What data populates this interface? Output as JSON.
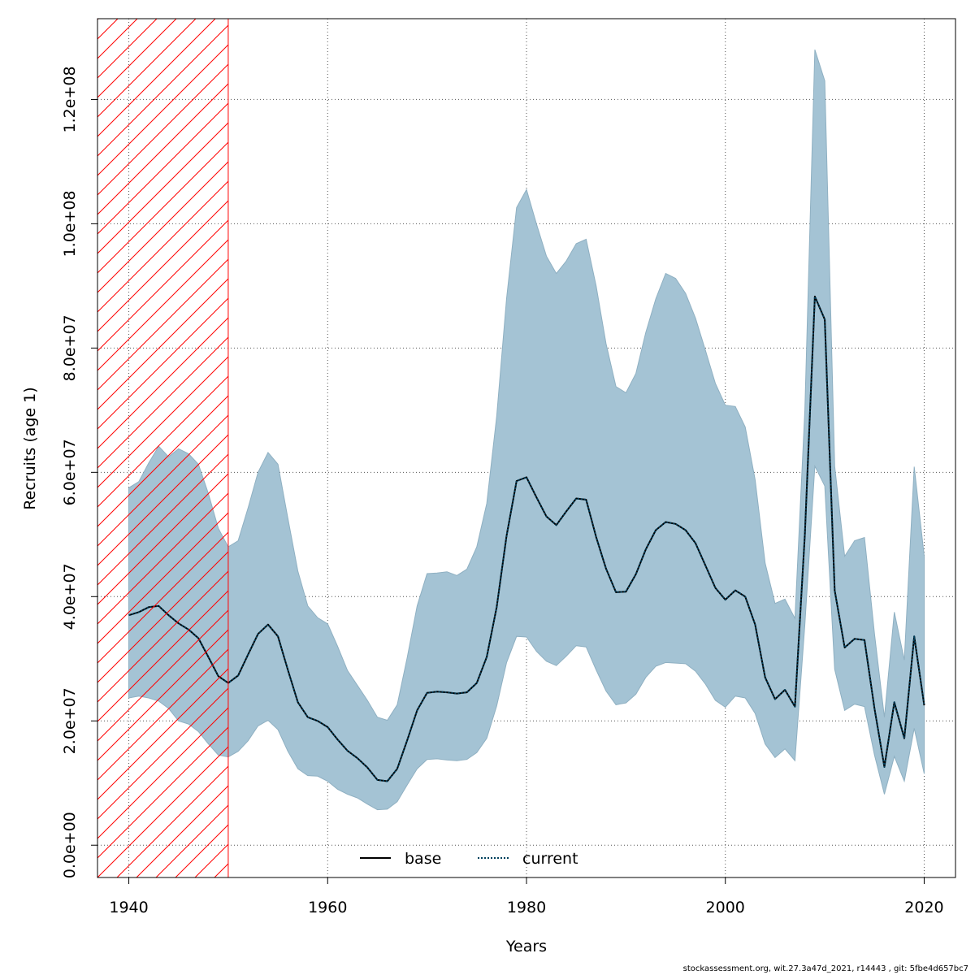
{
  "chart_data": {
    "type": "line",
    "title": "",
    "xlabel": "Years",
    "ylabel": "Recruits (age 1)",
    "xlim": [
      1936.85,
      2023.15
    ],
    "ylim": [
      -5200000,
      133000000
    ],
    "x_ticks": [
      1940,
      1960,
      1980,
      2000,
      2020
    ],
    "x_tick_labels": [
      "1940",
      "1960",
      "1980",
      "2000",
      "2020"
    ],
    "y_ticks": [
      0,
      20000000,
      40000000,
      60000000,
      80000000,
      100000000,
      120000000
    ],
    "y_tick_labels": [
      "0.0e+00",
      "2.0e+07",
      "4.0e+07",
      "6.0e+07",
      "8.0e+07",
      "1.0e+08",
      "1.2e+08"
    ],
    "grid": true,
    "legend_position": "bottom",
    "colors": {
      "band": "#a4c3d4",
      "band_edge": "#8fb0c2",
      "current": "#003f5c",
      "base": "#000000",
      "hatch": "#ff0000",
      "grid": "#555555"
    },
    "hatched_region": {
      "x_start": 1936.85,
      "x_end": 1950
    },
    "x": [
      1940,
      1941,
      1942,
      1943,
      1944,
      1945,
      1946,
      1947,
      1948,
      1949,
      1950,
      1951,
      1952,
      1953,
      1954,
      1955,
      1956,
      1957,
      1958,
      1959,
      1960,
      1961,
      1962,
      1963,
      1964,
      1965,
      1966,
      1967,
      1968,
      1969,
      1970,
      1971,
      1972,
      1973,
      1974,
      1975,
      1976,
      1977,
      1978,
      1979,
      1980,
      1981,
      1982,
      1983,
      1984,
      1985,
      1986,
      1987,
      1988,
      1989,
      1990,
      1991,
      1992,
      1993,
      1994,
      1995,
      1996,
      1997,
      1998,
      1999,
      2000,
      2001,
      2002,
      2003,
      2004,
      2005,
      2006,
      2007,
      2008,
      2009,
      2010,
      2011,
      2012,
      2013,
      2014,
      2015,
      2016,
      2017,
      2018,
      2019,
      2020
    ],
    "series": [
      {
        "name": "base",
        "style": "solid",
        "values": [
          37000000,
          37500000,
          38300000,
          38500000,
          37000000,
          35700000,
          34700000,
          33300000,
          30300000,
          27200000,
          26100000,
          27300000,
          30700000,
          34000000,
          35500000,
          33600000,
          28200000,
          23000000,
          20600000,
          20000000,
          19000000,
          17000000,
          15200000,
          14000000,
          12500000,
          10500000,
          10300000,
          12300000,
          16900000,
          21700000,
          24500000,
          24700000,
          24600000,
          24400000,
          24600000,
          26100000,
          30300000,
          38300000,
          49800000,
          58600000,
          59200000,
          56000000,
          52900000,
          51500000,
          53700000,
          55800000,
          55600000,
          49600000,
          44500000,
          40700000,
          40800000,
          43600000,
          47600000,
          50700000,
          52000000,
          51700000,
          50700000,
          48600000,
          45000000,
          41400000,
          39500000,
          41000000,
          40000000,
          35500000,
          27000000,
          23500000,
          25000000,
          22300000,
          50000000,
          88300000,
          84600000,
          41000000,
          31800000,
          33200000,
          33000000,
          22000000,
          12600000,
          23000000,
          17200000,
          33600000,
          22500000
        ]
      },
      {
        "name": "current",
        "style": "dotted",
        "values": [
          37000000,
          37500000,
          38300000,
          38500000,
          37000000,
          35700000,
          34700000,
          33300000,
          30300000,
          27200000,
          26100000,
          27300000,
          30700000,
          34000000,
          35500000,
          33600000,
          28200000,
          23000000,
          20600000,
          20000000,
          19000000,
          17000000,
          15200000,
          14000000,
          12500000,
          10500000,
          10300000,
          12300000,
          16900000,
          21700000,
          24500000,
          24700000,
          24600000,
          24400000,
          24600000,
          26100000,
          30300000,
          38300000,
          49800000,
          58600000,
          59200000,
          56000000,
          52900000,
          51500000,
          53700000,
          55800000,
          55600000,
          49600000,
          44500000,
          40700000,
          40800000,
          43600000,
          47600000,
          50700000,
          52000000,
          51700000,
          50700000,
          48600000,
          45000000,
          41400000,
          39500000,
          41000000,
          40000000,
          35500000,
          27000000,
          23500000,
          25000000,
          22300000,
          50000000,
          88300000,
          84600000,
          41000000,
          31800000,
          33200000,
          33000000,
          22000000,
          12600000,
          23000000,
          17200000,
          33600000,
          22500000
        ]
      }
    ],
    "band_upper": [
      57500000,
      58500000,
      61500000,
      64200000,
      62500000,
      63800000,
      63000000,
      61300000,
      56600000,
      51000000,
      48000000,
      49000000,
      54300000,
      60000000,
      63200000,
      61300000,
      52600000,
      44100000,
      38500000,
      36600000,
      35600000,
      32000000,
      28100000,
      25700000,
      23300000,
      20600000,
      20100000,
      22600000,
      30200000,
      38500000,
      43700000,
      43800000,
      44000000,
      43400000,
      44400000,
      48000000,
      55000000,
      69000000,
      88000000,
      102600000,
      105500000,
      100000000,
      94800000,
      92000000,
      94000000,
      96800000,
      97500000,
      90000000,
      80700000,
      73800000,
      72800000,
      75900000,
      82500000,
      87900000,
      92000000,
      91200000,
      88800000,
      84800000,
      79600000,
      74300000,
      70800000,
      70600000,
      67300000,
      58800000,
      45400000,
      38900000,
      39600000,
      36500000,
      70000000,
      128000000,
      123000000,
      61000000,
      46500000,
      49000000,
      49500000,
      34000000,
      20600000,
      37500000,
      29800000,
      60900000,
      46500000
    ],
    "band_lower": [
      23700000,
      24000000,
      23700000,
      23200000,
      22000000,
      20000000,
      19500000,
      18300000,
      16300000,
      14500000,
      14200000,
      15100000,
      16800000,
      19200000,
      20100000,
      18600000,
      15100000,
      12300000,
      11200000,
      11100000,
      10300000,
      9000000,
      8200000,
      7600000,
      6600000,
      5700000,
      5800000,
      7000000,
      9700000,
      12300000,
      13800000,
      13900000,
      13700000,
      13600000,
      13800000,
      14900000,
      17200000,
      22400000,
      29400000,
      33600000,
      33500000,
      31200000,
      29600000,
      28900000,
      30400000,
      32100000,
      31900000,
      28200000,
      24800000,
      22600000,
      22900000,
      24300000,
      27000000,
      28800000,
      29400000,
      29300000,
      29200000,
      28000000,
      25900000,
      23300000,
      22200000,
      24000000,
      23700000,
      21200000,
      16300000,
      14100000,
      15500000,
      13600000,
      35500000,
      61000000,
      57800000,
      28300000,
      21700000,
      22700000,
      22300000,
      14500000,
      8200000,
      14300000,
      10300000,
      18800000,
      11500000
    ]
  },
  "footer": {
    "text": "stockassessment.org, wit.27.3a47d_2021, r14443 , git: 5fbe4d657bc7"
  }
}
